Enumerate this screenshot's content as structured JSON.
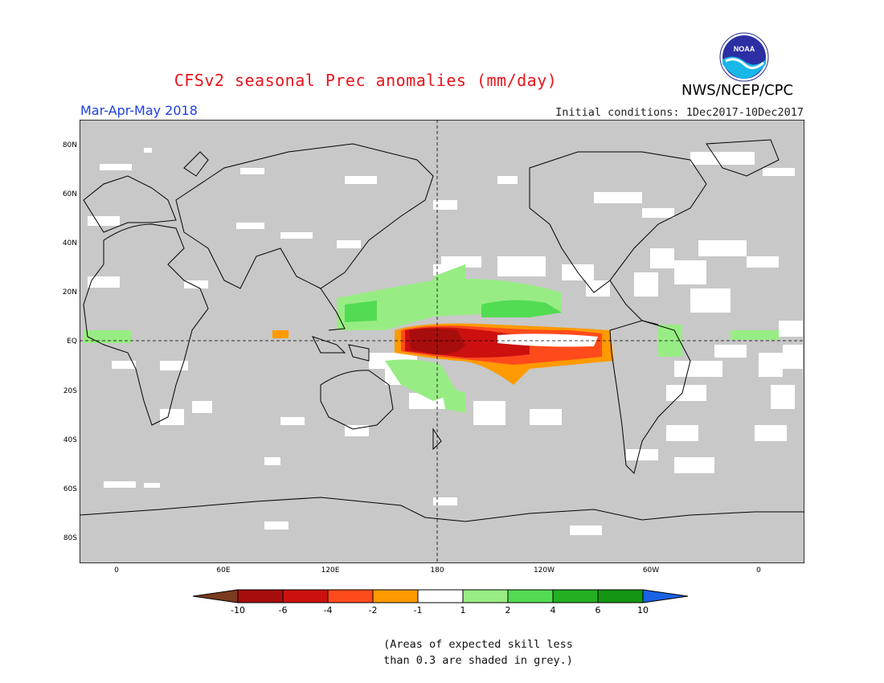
{
  "title": "CFSv2 seasonal Prec anomalies (mm/day)",
  "organization": "NWS/NCEP/CPC",
  "logo_text": "NOAA",
  "season": "Mar-Apr-May 2018",
  "initial_conditions": "Initial conditions: 1Dec2017-10Dec2017",
  "lat_ticks": [
    "80N",
    "60N",
    "40N",
    "20N",
    "EQ",
    "20S",
    "40S",
    "60S",
    "80S"
  ],
  "lon_ticks": [
    "0",
    "60E",
    "120E",
    "180",
    "120W",
    "60W",
    "0"
  ],
  "colorbar": {
    "labels": [
      "-10",
      "-6",
      "-4",
      "-2",
      "-1",
      "1",
      "2",
      "4",
      "6",
      "10"
    ],
    "colors": [
      "#7a3b1e",
      "#a80d0d",
      "#cc1010",
      "#ff4a1c",
      "#ff9a00",
      "#ffffff",
      "#98ec84",
      "#52dc52",
      "#22b022",
      "#139413",
      "#1a62e6"
    ]
  },
  "note_lines": [
    "(Areas of expected skill less",
    "than 0.3 are shaded in grey.)"
  ],
  "colors": {
    "grey_mask": "#c8c8c8",
    "title": "#e8141c",
    "season": "#1f3fe0"
  }
}
